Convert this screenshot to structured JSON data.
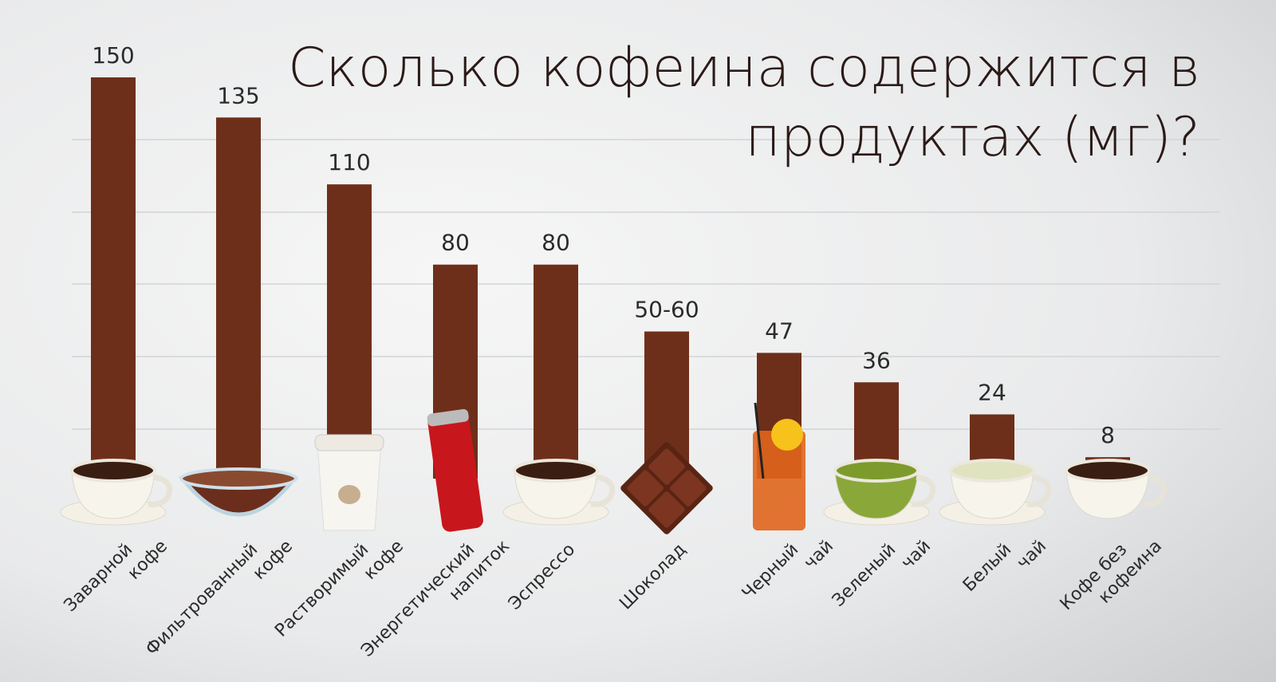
{
  "chart_data": {
    "type": "bar",
    "title": [
      "Сколько кофеина содержится в",
      "продуктах (мг)?"
    ],
    "categories": [
      [
        "Заварной",
        "кофе"
      ],
      [
        "Фильтрованный",
        "кофе"
      ],
      [
        "Растворимый",
        "кофе"
      ],
      [
        "Энергетический",
        "напиток"
      ],
      [
        "Эспрессо"
      ],
      [
        "Шоколад"
      ],
      [
        "Черный",
        "чай"
      ],
      [
        "Зеленый",
        "чай"
      ],
      [
        "Белый",
        "чай"
      ],
      [
        "Кофе без",
        "кофеина"
      ]
    ],
    "values": [
      150,
      135,
      110,
      80,
      80,
      55,
      47,
      36,
      24,
      8
    ],
    "value_labels": [
      "150",
      "135",
      "110",
      "80",
      "80",
      "50-60",
      "47",
      "36",
      "24",
      "8"
    ],
    "color": "#6e2f1a",
    "grid": true
  }
}
